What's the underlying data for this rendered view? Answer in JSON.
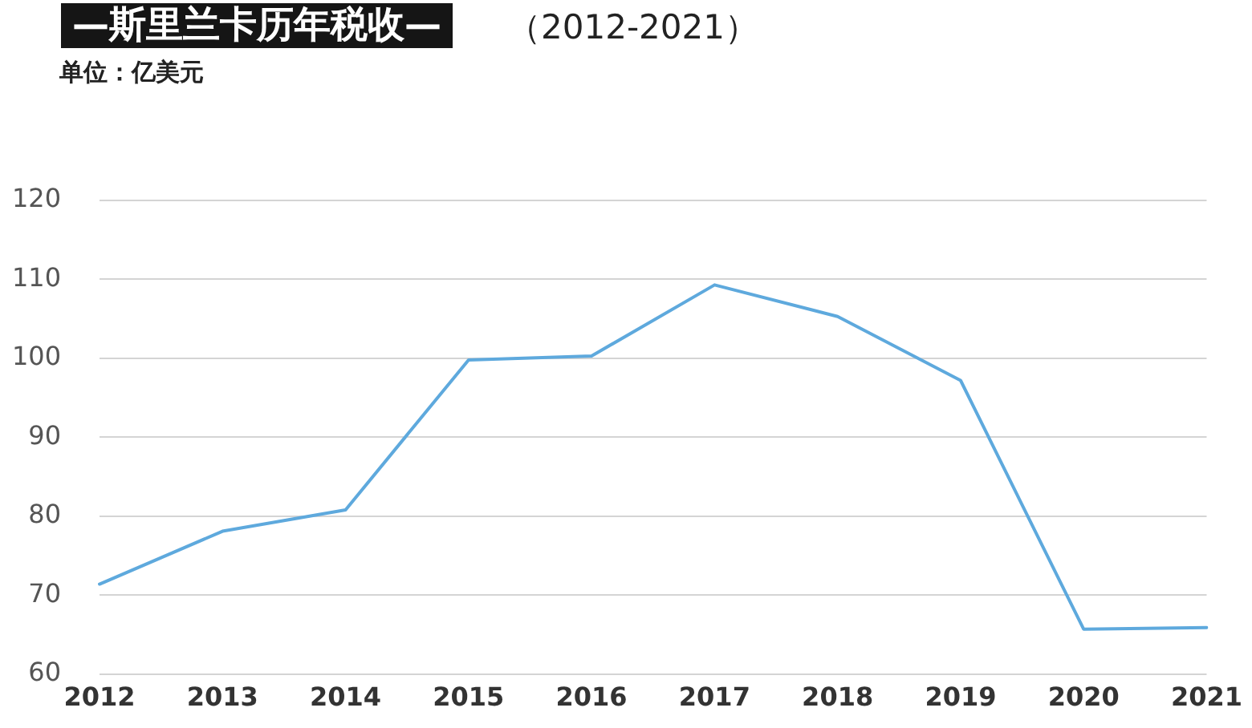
{
  "chart_data": {
    "type": "line",
    "title": "—斯里兰卡历年税收—",
    "subtitle": "（2012-2021）",
    "ylabel": "单位：亿美元",
    "categories": [
      "2012",
      "2013",
      "2014",
      "2015",
      "2016",
      "2017",
      "2018",
      "2019",
      "2020",
      "2021"
    ],
    "series": [
      {
        "color": "#5ea9dd",
        "values": [
          71.4,
          78.1,
          80.8,
          99.8,
          100.3,
          109.3,
          105.3,
          97.2,
          65.7,
          65.9
        ]
      }
    ],
    "ylim": [
      60,
      120
    ],
    "yticks": [
      60,
      70,
      80,
      90,
      100,
      110,
      120
    ],
    "grid": "y",
    "marker": "none",
    "line_style": "solid"
  }
}
